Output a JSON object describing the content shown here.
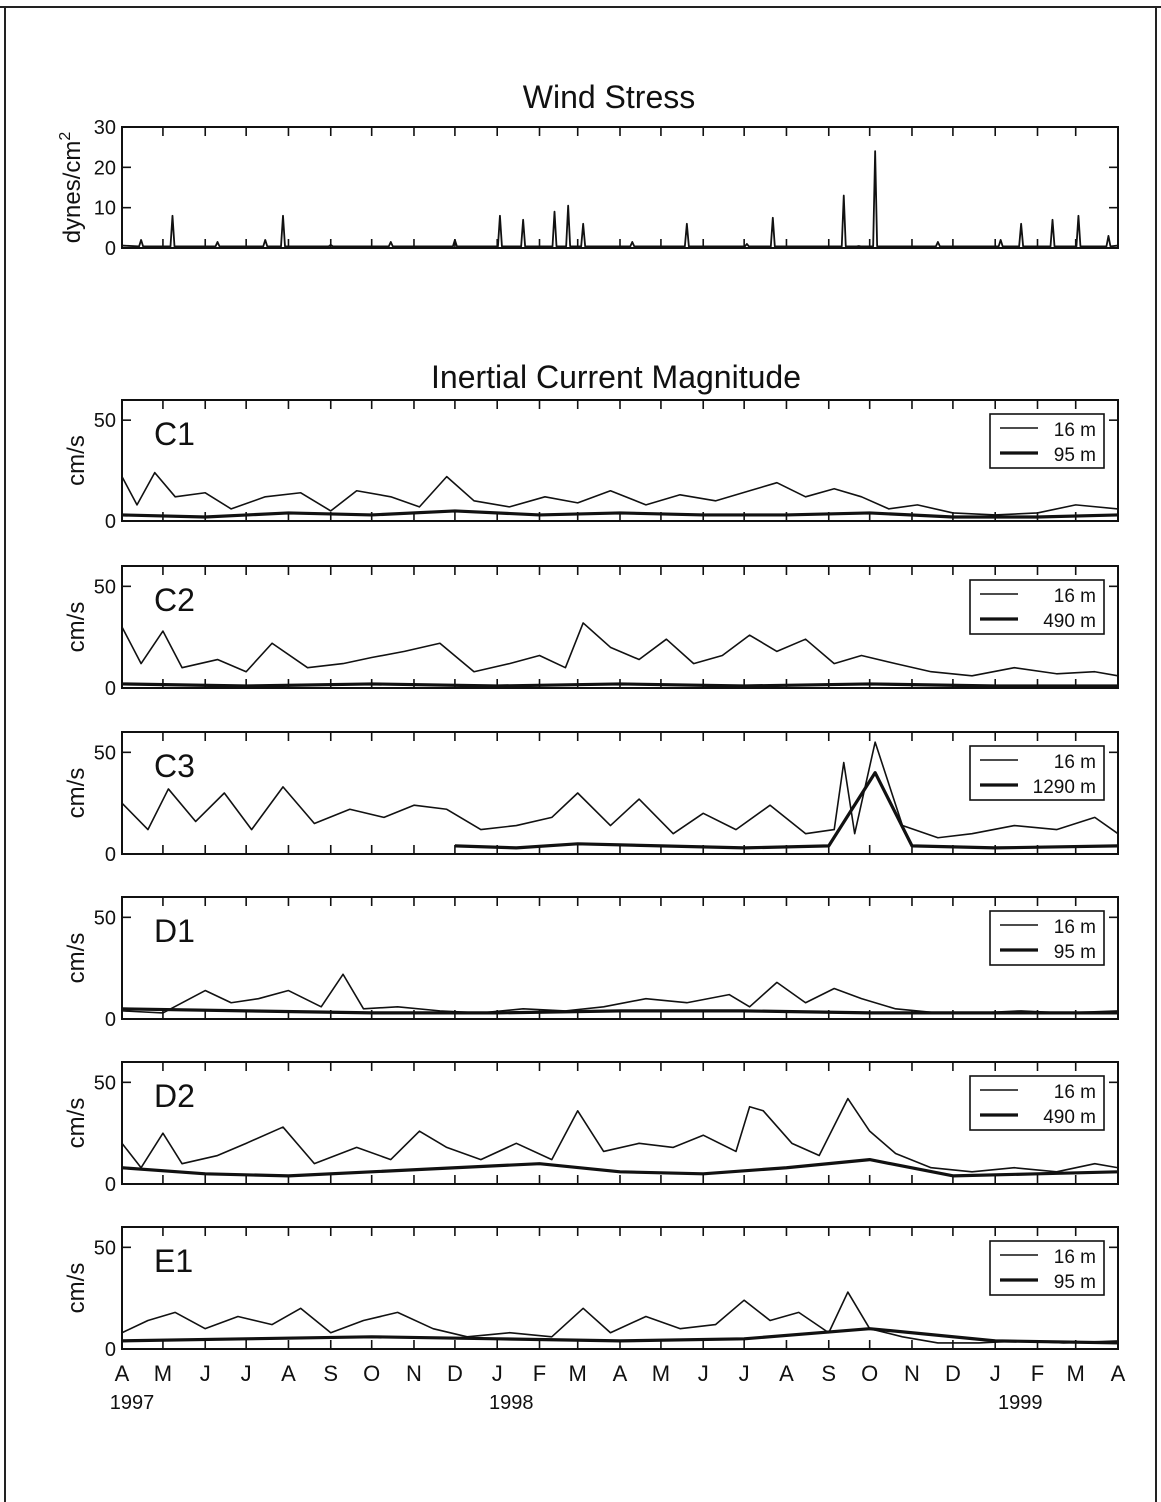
{
  "figure": {
    "wind_title": "Wind Stress",
    "current_title": "Inertial Current Magnitude",
    "month_labels": [
      "A",
      "M",
      "J",
      "J",
      "A",
      "S",
      "O",
      "N",
      "D",
      "J",
      "F",
      "M",
      "A",
      "M",
      "J",
      "J",
      "A",
      "S",
      "O",
      "N",
      "D",
      "J",
      "F",
      "M",
      "A"
    ],
    "year_labels": [
      "1997",
      "1998",
      "1999"
    ]
  },
  "chart_data": [
    {
      "type": "line",
      "id": "wind",
      "title": "Wind Stress",
      "ylabel": "dynes/cm",
      "ylabel_superscript": "2",
      "ylim": [
        0,
        30
      ],
      "yticks": [
        0,
        10,
        20,
        30
      ],
      "xlim": [
        "1997-04-01",
        "1999-04-01"
      ],
      "x_unit": "date",
      "series": [
        {
          "x": [
            "1997-04-15",
            "1997-05-08",
            "1997-06-10",
            "1997-07-15",
            "1997-07-28",
            "1997-09-01",
            "1997-10-15",
            "1997-12-01",
            "1998-01-03",
            "1998-01-20",
            "1998-02-12",
            "1998-02-22",
            "1998-03-05",
            "1998-04-10",
            "1998-05-20",
            "1998-07-03",
            "1998-07-22",
            "1998-09-12",
            "1998-09-23",
            "1998-10-05",
            "1998-11-20",
            "1999-01-05",
            "1999-01-20",
            "1999-02-12",
            "1999-03-03",
            "1999-03-25"
          ],
          "y": [
            2,
            8,
            1.5,
            2,
            8,
            0.8,
            1.5,
            2,
            8,
            7,
            9,
            10.5,
            6,
            1.5,
            6,
            1,
            7.5,
            13,
            0.5,
            24,
            1.5,
            2,
            6,
            7,
            8,
            3
          ]
        }
      ]
    },
    {
      "type": "line",
      "id": "C1",
      "panel_label": "C1",
      "ylabel": "cm/s",
      "ylim": [
        0,
        60
      ],
      "yticks": [
        0,
        50
      ],
      "xlim": [
        "1997-04-01",
        "1999-04-01"
      ],
      "legend": [
        "16 m",
        "95 m"
      ],
      "series": [
        {
          "name": "16 m",
          "x": [
            "1997-04-01",
            "1997-04-12",
            "1997-04-25",
            "1997-05-10",
            "1997-06-01",
            "1997-06-20",
            "1997-07-15",
            "1997-08-10",
            "1997-09-01",
            "1997-09-20",
            "1997-10-15",
            "1997-11-05",
            "1997-11-25",
            "1997-12-15",
            "1998-01-10",
            "1998-02-05",
            "1998-03-01",
            "1998-03-25",
            "1998-04-20",
            "1998-05-15",
            "1998-06-10",
            "1998-07-05",
            "1998-07-25",
            "1998-08-15",
            "1998-09-05",
            "1998-09-25",
            "1998-10-15",
            "1998-11-05",
            "1998-12-01",
            "1999-01-01",
            "1999-02-01",
            "1999-03-01",
            "1999-04-01"
          ],
          "y": [
            22,
            8,
            24,
            12,
            14,
            6,
            12,
            14,
            5,
            15,
            12,
            7,
            22,
            10,
            7,
            12,
            9,
            15,
            8,
            13,
            10,
            15,
            19,
            12,
            16,
            12,
            6,
            8,
            4,
            3,
            4,
            8,
            6
          ]
        },
        {
          "name": "95 m",
          "x": [
            "1997-04-01",
            "1997-06-01",
            "1997-08-01",
            "1997-10-01",
            "1997-12-01",
            "1998-02-01",
            "1998-04-01",
            "1998-06-01",
            "1998-08-01",
            "1998-10-01",
            "1998-12-01",
            "1999-02-01",
            "1999-04-01"
          ],
          "y": [
            3,
            2,
            4,
            3,
            5,
            3,
            4,
            3,
            3,
            4,
            2,
            2,
            3
          ]
        }
      ]
    },
    {
      "type": "line",
      "id": "C2",
      "panel_label": "C2",
      "ylabel": "cm/s",
      "ylim": [
        0,
        60
      ],
      "yticks": [
        0,
        50
      ],
      "xlim": [
        "1997-04-01",
        "1999-04-01"
      ],
      "legend": [
        "16 m",
        "490 m"
      ],
      "series": [
        {
          "name": "16 m",
          "x": [
            "1997-04-01",
            "1997-04-15",
            "1997-05-01",
            "1997-05-15",
            "1997-06-10",
            "1997-07-01",
            "1997-07-20",
            "1997-08-15",
            "1997-09-10",
            "1997-10-01",
            "1997-10-25",
            "1997-11-20",
            "1997-12-15",
            "1998-01-10",
            "1998-02-01",
            "1998-02-20",
            "1998-03-05",
            "1998-03-25",
            "1998-04-15",
            "1998-05-05",
            "1998-05-25",
            "1998-06-15",
            "1998-07-05",
            "1998-07-25",
            "1998-08-15",
            "1998-09-05",
            "1998-09-25",
            "1998-10-20",
            "1998-11-15",
            "1998-12-15",
            "1999-01-15",
            "1999-02-15",
            "1999-03-15",
            "1999-04-01"
          ],
          "y": [
            30,
            12,
            28,
            10,
            14,
            8,
            22,
            10,
            12,
            15,
            18,
            22,
            8,
            12,
            16,
            10,
            32,
            20,
            14,
            24,
            12,
            16,
            26,
            18,
            24,
            12,
            16,
            12,
            8,
            6,
            10,
            7,
            8,
            6
          ]
        },
        {
          "name": "490 m",
          "x": [
            "1997-04-01",
            "1997-07-01",
            "1997-10-01",
            "1998-01-01",
            "1998-04-01",
            "1998-07-01",
            "1998-10-01",
            "1999-01-01",
            "1999-04-01"
          ],
          "y": [
            2,
            1,
            2,
            1,
            2,
            1,
            2,
            1,
            1
          ]
        }
      ]
    },
    {
      "type": "line",
      "id": "C3",
      "panel_label": "C3",
      "ylabel": "cm/s",
      "ylim": [
        0,
        60
      ],
      "yticks": [
        0,
        50
      ],
      "xlim": [
        "1997-04-01",
        "1999-04-01"
      ],
      "legend": [
        "16 m",
        "1290 m"
      ],
      "series": [
        {
          "name": "16 m",
          "x": [
            "1997-04-01",
            "1997-04-20",
            "1997-05-05",
            "1997-05-25",
            "1997-06-15",
            "1997-07-05",
            "1997-07-28",
            "1997-08-20",
            "1997-09-15",
            "1997-10-10",
            "1997-11-01",
            "1997-11-25",
            "1997-12-20",
            "1998-01-15",
            "1998-02-10",
            "1998-03-01",
            "1998-03-25",
            "1998-04-15",
            "1998-05-10",
            "1998-06-01",
            "1998-06-25",
            "1998-07-20",
            "1998-08-15",
            "1998-09-05",
            "1998-09-12",
            "1998-09-20",
            "1998-10-05",
            "1998-10-25",
            "1998-11-20",
            "1998-12-15",
            "1999-01-15",
            "1999-02-15",
            "1999-03-15",
            "1999-04-01"
          ],
          "y": [
            25,
            12,
            32,
            16,
            30,
            12,
            33,
            15,
            22,
            18,
            24,
            22,
            12,
            14,
            18,
            30,
            14,
            27,
            10,
            20,
            12,
            24,
            10,
            12,
            45,
            10,
            55,
            14,
            8,
            10,
            14,
            12,
            18,
            10
          ]
        },
        {
          "name": "1290 m",
          "x": [
            "1997-12-01",
            "1998-01-15",
            "1998-03-01",
            "1998-05-01",
            "1998-07-01",
            "1998-09-01",
            "1998-10-05",
            "1998-11-01",
            "1999-01-01",
            "1999-04-01"
          ],
          "y": [
            4,
            3,
            5,
            4,
            3,
            4,
            40,
            4,
            3,
            4
          ]
        }
      ]
    },
    {
      "type": "line",
      "id": "D1",
      "panel_label": "D1",
      "ylabel": "cm/s",
      "ylim": [
        0,
        60
      ],
      "yticks": [
        0,
        50
      ],
      "xlim": [
        "1997-04-01",
        "1999-04-01"
      ],
      "legend": [
        "16 m",
        "95 m"
      ],
      "series": [
        {
          "name": "16 m",
          "x": [
            "1997-04-01",
            "1997-05-01",
            "1997-06-01",
            "1997-06-20",
            "1997-07-10",
            "1997-08-01",
            "1997-08-25",
            "1997-09-10",
            "1997-09-25",
            "1997-10-20",
            "1997-11-20",
            "1997-12-20",
            "1998-01-20",
            "1998-02-20",
            "1998-03-20",
            "1998-04-20",
            "1998-05-20",
            "1998-06-20",
            "1998-07-05",
            "1998-07-25",
            "1998-08-15",
            "1998-09-05",
            "1998-09-25",
            "1998-10-20",
            "1998-11-20",
            "1998-12-20",
            "1999-01-20",
            "1999-02-20",
            "1999-04-01"
          ],
          "y": [
            4,
            3,
            14,
            8,
            10,
            14,
            6,
            22,
            5,
            6,
            4,
            3,
            5,
            4,
            6,
            10,
            8,
            12,
            6,
            18,
            8,
            15,
            10,
            5,
            3,
            3,
            4,
            3,
            4
          ]
        },
        {
          "name": "95 m",
          "x": [
            "1997-04-01",
            "1997-07-01",
            "1997-10-01",
            "1998-01-01",
            "1998-04-01",
            "1998-07-01",
            "1998-10-01",
            "1999-01-01",
            "1999-04-01"
          ],
          "y": [
            5,
            4,
            3,
            3,
            4,
            4,
            3,
            3,
            3
          ]
        }
      ]
    },
    {
      "type": "line",
      "id": "D2",
      "panel_label": "D2",
      "ylabel": "cm/s",
      "ylim": [
        0,
        60
      ],
      "yticks": [
        0,
        50
      ],
      "xlim": [
        "1997-04-01",
        "1999-04-01"
      ],
      "legend": [
        "16 m",
        "490 m"
      ],
      "series": [
        {
          "name": "16 m",
          "x": [
            "1997-04-01",
            "1997-04-15",
            "1997-05-01",
            "1997-05-15",
            "1997-06-10",
            "1997-07-01",
            "1997-07-28",
            "1997-08-20",
            "1997-09-20",
            "1997-10-15",
            "1997-11-05",
            "1997-11-25",
            "1997-12-20",
            "1998-01-15",
            "1998-02-10",
            "1998-03-01",
            "1998-03-20",
            "1998-04-15",
            "1998-05-10",
            "1998-06-01",
            "1998-06-25",
            "1998-07-05",
            "1998-07-15",
            "1998-08-05",
            "1998-08-25",
            "1998-09-15",
            "1998-10-01",
            "1998-10-20",
            "1998-11-15",
            "1998-12-15",
            "1999-01-15",
            "1999-02-15",
            "1999-03-15",
            "1999-04-01"
          ],
          "y": [
            20,
            8,
            25,
            10,
            14,
            20,
            28,
            10,
            18,
            12,
            26,
            18,
            12,
            20,
            12,
            36,
            16,
            20,
            18,
            24,
            16,
            38,
            36,
            20,
            14,
            42,
            26,
            15,
            8,
            6,
            8,
            6,
            10,
            8
          ]
        },
        {
          "name": "490 m",
          "x": [
            "1997-04-01",
            "1997-06-01",
            "1997-08-01",
            "1997-10-01",
            "1997-12-01",
            "1998-02-01",
            "1998-04-01",
            "1998-06-01",
            "1998-08-01",
            "1998-10-01",
            "1998-12-01",
            "1999-02-01",
            "1999-04-01"
          ],
          "y": [
            8,
            5,
            4,
            6,
            8,
            10,
            6,
            5,
            8,
            12,
            4,
            5,
            6
          ]
        }
      ]
    },
    {
      "type": "line",
      "id": "E1",
      "panel_label": "E1",
      "ylabel": "cm/s",
      "ylim": [
        0,
        60
      ],
      "yticks": [
        0,
        50
      ],
      "xlim": [
        "1997-04-01",
        "1999-04-01"
      ],
      "legend": [
        "16 m",
        "95 m"
      ],
      "series": [
        {
          "name": "16 m",
          "x": [
            "1997-04-01",
            "1997-04-20",
            "1997-05-10",
            "1997-06-01",
            "1997-06-25",
            "1997-07-20",
            "1997-08-10",
            "1997-09-01",
            "1997-09-25",
            "1997-10-20",
            "1997-11-15",
            "1997-12-10",
            "1998-01-10",
            "1998-02-10",
            "1998-03-05",
            "1998-03-25",
            "1998-04-20",
            "1998-05-15",
            "1998-06-10",
            "1998-07-01",
            "1998-07-20",
            "1998-08-10",
            "1998-09-01",
            "1998-09-15",
            "1998-10-01",
            "1998-10-25",
            "1998-11-20",
            "1998-12-20",
            "1999-01-20",
            "1999-02-20",
            "1999-04-01"
          ],
          "y": [
            8,
            14,
            18,
            10,
            16,
            12,
            20,
            8,
            14,
            18,
            10,
            6,
            8,
            6,
            20,
            8,
            16,
            10,
            12,
            24,
            14,
            18,
            8,
            28,
            10,
            6,
            3,
            3,
            4,
            3,
            4
          ]
        },
        {
          "name": "95 m",
          "x": [
            "1997-04-01",
            "1997-07-01",
            "1997-10-01",
            "1998-01-01",
            "1998-04-01",
            "1998-07-01",
            "1998-10-01",
            "1999-01-01",
            "1999-04-01"
          ],
          "y": [
            4,
            5,
            6,
            5,
            4,
            5,
            10,
            4,
            3
          ]
        }
      ]
    }
  ]
}
